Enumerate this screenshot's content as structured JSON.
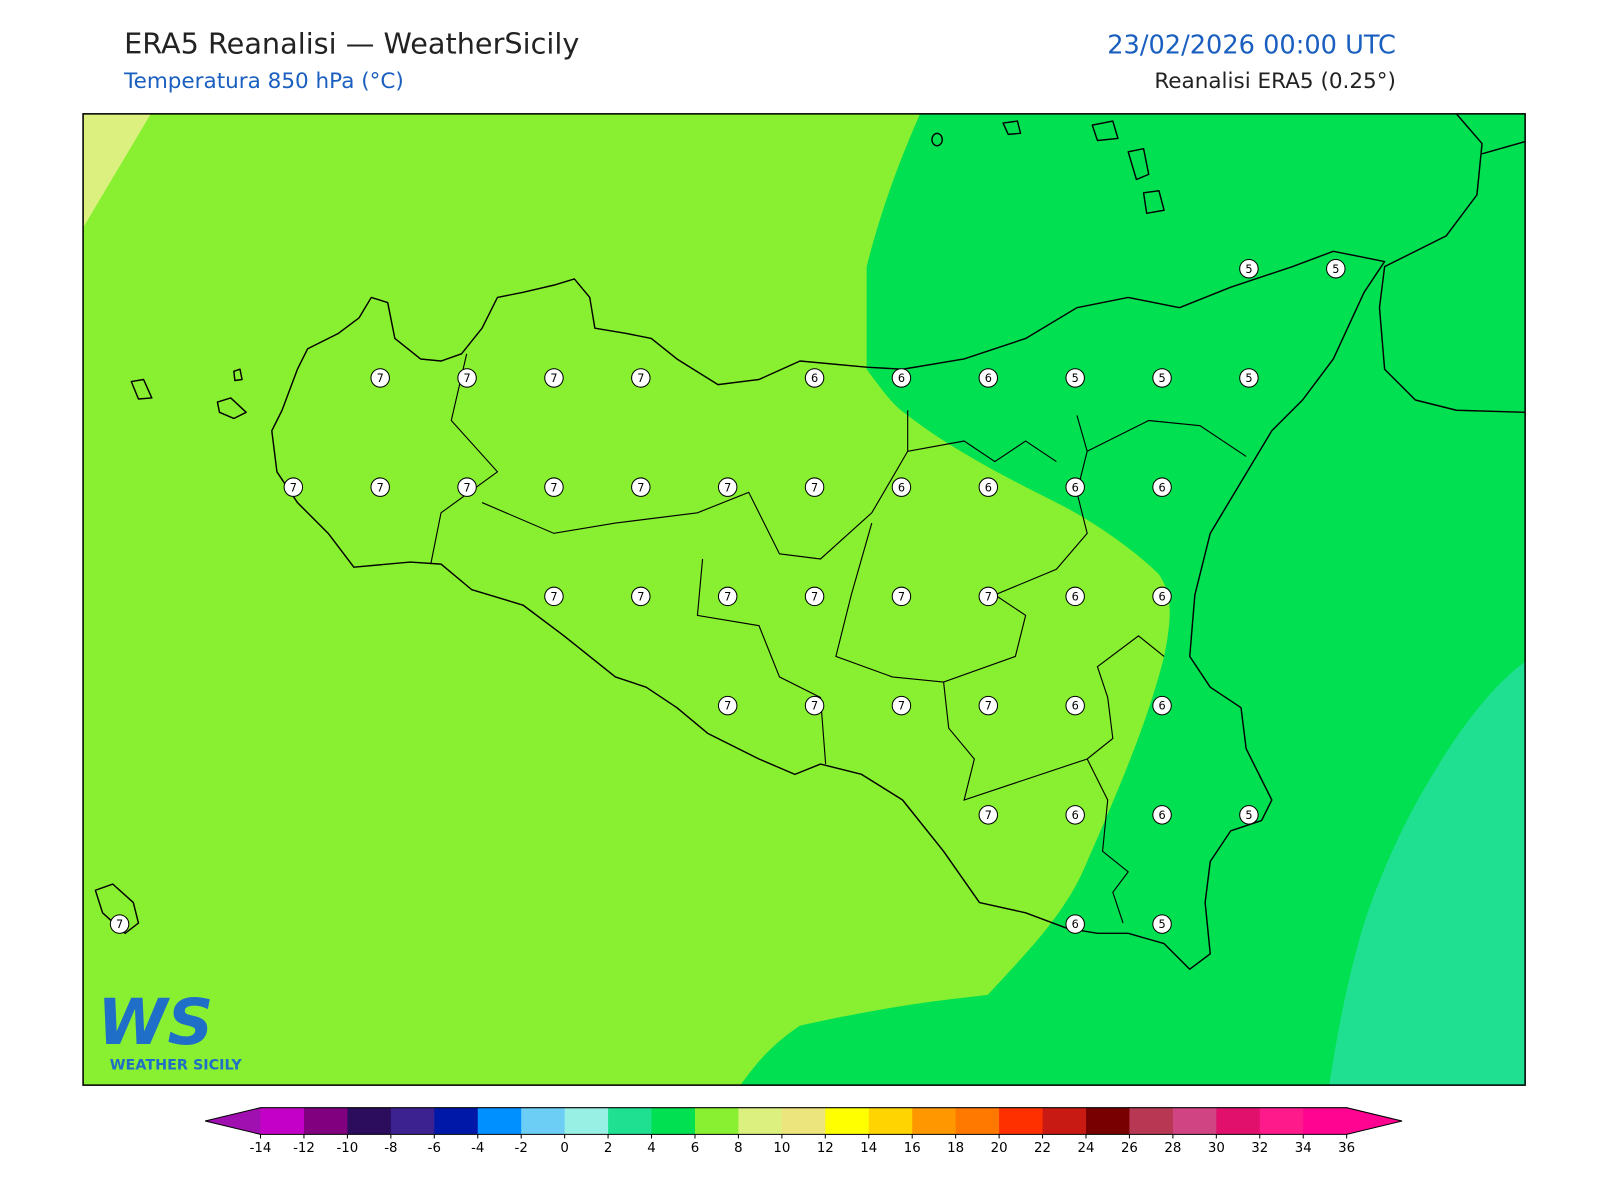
{
  "header": {
    "title": "ERA5 Reanalisi — WeatherSicily",
    "subtitle": "Temperatura 850 hPa (°C)",
    "datetime": "23/02/2026 00:00 UTC",
    "source": "Reanalisi ERA5 (0.25°)"
  },
  "map": {
    "grid": [
      [
        null,
        null,
        null,
        null,
        null,
        null,
        null,
        null,
        null,
        null,
        null,
        null,
        null,
        5,
        5
      ],
      [
        null,
        null,
        null,
        7,
        7,
        7,
        7,
        null,
        6,
        6,
        6,
        5,
        5,
        5,
        null
      ],
      [
        null,
        null,
        7,
        7,
        7,
        7,
        7,
        7,
        7,
        6,
        6,
        6,
        6,
        null,
        null
      ],
      [
        null,
        null,
        null,
        null,
        null,
        7,
        7,
        7,
        7,
        7,
        7,
        6,
        6,
        null,
        null
      ],
      [
        null,
        null,
        null,
        null,
        null,
        null,
        null,
        7,
        7,
        7,
        7,
        6,
        6,
        null,
        null
      ],
      [
        null,
        null,
        null,
        null,
        null,
        null,
        null,
        null,
        null,
        null,
        7,
        6,
        6,
        5,
        null
      ],
      [
        7,
        null,
        null,
        null,
        null,
        null,
        null,
        null,
        null,
        null,
        null,
        6,
        5,
        null,
        null
      ]
    ]
  },
  "logo": {
    "mark": "WS",
    "text": "WEATHER SICILY"
  },
  "colorbar": {
    "ticks": [
      -14,
      -12,
      -10,
      -8,
      -6,
      -4,
      -2,
      0,
      2,
      4,
      6,
      8,
      10,
      12,
      14,
      16,
      18,
      20,
      22,
      24,
      26,
      28,
      30,
      32,
      34,
      36
    ],
    "colors": [
      "#c400c8",
      "#800080",
      "#2c0c5c",
      "#3c2290",
      "#0018a8",
      "#0090ff",
      "#6ccdf5",
      "#98f0e4",
      "#1ee090",
      "#00e050",
      "#88f030",
      "#dcf080",
      "#ece47c",
      "#ffff00",
      "#ffd400",
      "#ff9800",
      "#ff7800",
      "#ff3000",
      "#c81a12",
      "#780000",
      "#b83854",
      "#d04484",
      "#e0106c",
      "#ff1a8c",
      "#ff0490"
    ],
    "under": "#a010b0",
    "over": "#ff0490"
  }
}
